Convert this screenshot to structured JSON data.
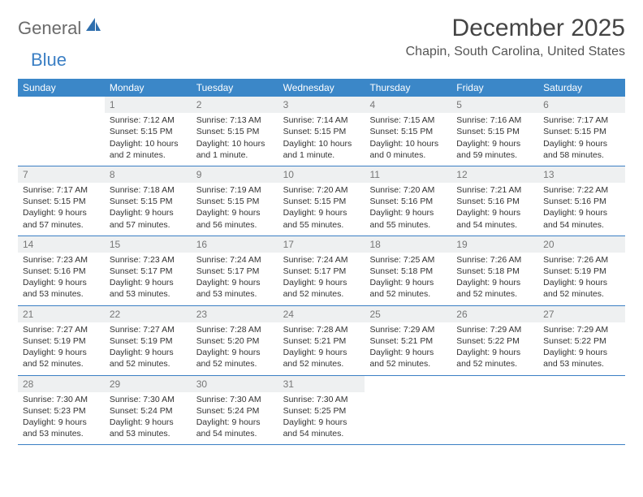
{
  "logo": {
    "general": "General",
    "blue": "Blue"
  },
  "title": "December 2025",
  "location": "Chapin, South Carolina, United States",
  "colors": {
    "header_bg": "#3b87c8",
    "border": "#3b7fc4",
    "daynum_bg": "#eef0f1",
    "text": "#333333"
  },
  "weekdays": [
    "Sunday",
    "Monday",
    "Tuesday",
    "Wednesday",
    "Thursday",
    "Friday",
    "Saturday"
  ],
  "weeks": [
    [
      {
        "n": "",
        "sr": "",
        "ss": "",
        "dl": ""
      },
      {
        "n": "1",
        "sr": "Sunrise: 7:12 AM",
        "ss": "Sunset: 5:15 PM",
        "dl": "Daylight: 10 hours and 2 minutes."
      },
      {
        "n": "2",
        "sr": "Sunrise: 7:13 AM",
        "ss": "Sunset: 5:15 PM",
        "dl": "Daylight: 10 hours and 1 minute."
      },
      {
        "n": "3",
        "sr": "Sunrise: 7:14 AM",
        "ss": "Sunset: 5:15 PM",
        "dl": "Daylight: 10 hours and 1 minute."
      },
      {
        "n": "4",
        "sr": "Sunrise: 7:15 AM",
        "ss": "Sunset: 5:15 PM",
        "dl": "Daylight: 10 hours and 0 minutes."
      },
      {
        "n": "5",
        "sr": "Sunrise: 7:16 AM",
        "ss": "Sunset: 5:15 PM",
        "dl": "Daylight: 9 hours and 59 minutes."
      },
      {
        "n": "6",
        "sr": "Sunrise: 7:17 AM",
        "ss": "Sunset: 5:15 PM",
        "dl": "Daylight: 9 hours and 58 minutes."
      }
    ],
    [
      {
        "n": "7",
        "sr": "Sunrise: 7:17 AM",
        "ss": "Sunset: 5:15 PM",
        "dl": "Daylight: 9 hours and 57 minutes."
      },
      {
        "n": "8",
        "sr": "Sunrise: 7:18 AM",
        "ss": "Sunset: 5:15 PM",
        "dl": "Daylight: 9 hours and 57 minutes."
      },
      {
        "n": "9",
        "sr": "Sunrise: 7:19 AM",
        "ss": "Sunset: 5:15 PM",
        "dl": "Daylight: 9 hours and 56 minutes."
      },
      {
        "n": "10",
        "sr": "Sunrise: 7:20 AM",
        "ss": "Sunset: 5:15 PM",
        "dl": "Daylight: 9 hours and 55 minutes."
      },
      {
        "n": "11",
        "sr": "Sunrise: 7:20 AM",
        "ss": "Sunset: 5:16 PM",
        "dl": "Daylight: 9 hours and 55 minutes."
      },
      {
        "n": "12",
        "sr": "Sunrise: 7:21 AM",
        "ss": "Sunset: 5:16 PM",
        "dl": "Daylight: 9 hours and 54 minutes."
      },
      {
        "n": "13",
        "sr": "Sunrise: 7:22 AM",
        "ss": "Sunset: 5:16 PM",
        "dl": "Daylight: 9 hours and 54 minutes."
      }
    ],
    [
      {
        "n": "14",
        "sr": "Sunrise: 7:23 AM",
        "ss": "Sunset: 5:16 PM",
        "dl": "Daylight: 9 hours and 53 minutes."
      },
      {
        "n": "15",
        "sr": "Sunrise: 7:23 AM",
        "ss": "Sunset: 5:17 PM",
        "dl": "Daylight: 9 hours and 53 minutes."
      },
      {
        "n": "16",
        "sr": "Sunrise: 7:24 AM",
        "ss": "Sunset: 5:17 PM",
        "dl": "Daylight: 9 hours and 53 minutes."
      },
      {
        "n": "17",
        "sr": "Sunrise: 7:24 AM",
        "ss": "Sunset: 5:17 PM",
        "dl": "Daylight: 9 hours and 52 minutes."
      },
      {
        "n": "18",
        "sr": "Sunrise: 7:25 AM",
        "ss": "Sunset: 5:18 PM",
        "dl": "Daylight: 9 hours and 52 minutes."
      },
      {
        "n": "19",
        "sr": "Sunrise: 7:26 AM",
        "ss": "Sunset: 5:18 PM",
        "dl": "Daylight: 9 hours and 52 minutes."
      },
      {
        "n": "20",
        "sr": "Sunrise: 7:26 AM",
        "ss": "Sunset: 5:19 PM",
        "dl": "Daylight: 9 hours and 52 minutes."
      }
    ],
    [
      {
        "n": "21",
        "sr": "Sunrise: 7:27 AM",
        "ss": "Sunset: 5:19 PM",
        "dl": "Daylight: 9 hours and 52 minutes."
      },
      {
        "n": "22",
        "sr": "Sunrise: 7:27 AM",
        "ss": "Sunset: 5:19 PM",
        "dl": "Daylight: 9 hours and 52 minutes."
      },
      {
        "n": "23",
        "sr": "Sunrise: 7:28 AM",
        "ss": "Sunset: 5:20 PM",
        "dl": "Daylight: 9 hours and 52 minutes."
      },
      {
        "n": "24",
        "sr": "Sunrise: 7:28 AM",
        "ss": "Sunset: 5:21 PM",
        "dl": "Daylight: 9 hours and 52 minutes."
      },
      {
        "n": "25",
        "sr": "Sunrise: 7:29 AM",
        "ss": "Sunset: 5:21 PM",
        "dl": "Daylight: 9 hours and 52 minutes."
      },
      {
        "n": "26",
        "sr": "Sunrise: 7:29 AM",
        "ss": "Sunset: 5:22 PM",
        "dl": "Daylight: 9 hours and 52 minutes."
      },
      {
        "n": "27",
        "sr": "Sunrise: 7:29 AM",
        "ss": "Sunset: 5:22 PM",
        "dl": "Daylight: 9 hours and 53 minutes."
      }
    ],
    [
      {
        "n": "28",
        "sr": "Sunrise: 7:30 AM",
        "ss": "Sunset: 5:23 PM",
        "dl": "Daylight: 9 hours and 53 minutes."
      },
      {
        "n": "29",
        "sr": "Sunrise: 7:30 AM",
        "ss": "Sunset: 5:24 PM",
        "dl": "Daylight: 9 hours and 53 minutes."
      },
      {
        "n": "30",
        "sr": "Sunrise: 7:30 AM",
        "ss": "Sunset: 5:24 PM",
        "dl": "Daylight: 9 hours and 54 minutes."
      },
      {
        "n": "31",
        "sr": "Sunrise: 7:30 AM",
        "ss": "Sunset: 5:25 PM",
        "dl": "Daylight: 9 hours and 54 minutes."
      },
      {
        "n": "",
        "sr": "",
        "ss": "",
        "dl": ""
      },
      {
        "n": "",
        "sr": "",
        "ss": "",
        "dl": ""
      },
      {
        "n": "",
        "sr": "",
        "ss": "",
        "dl": ""
      }
    ]
  ]
}
